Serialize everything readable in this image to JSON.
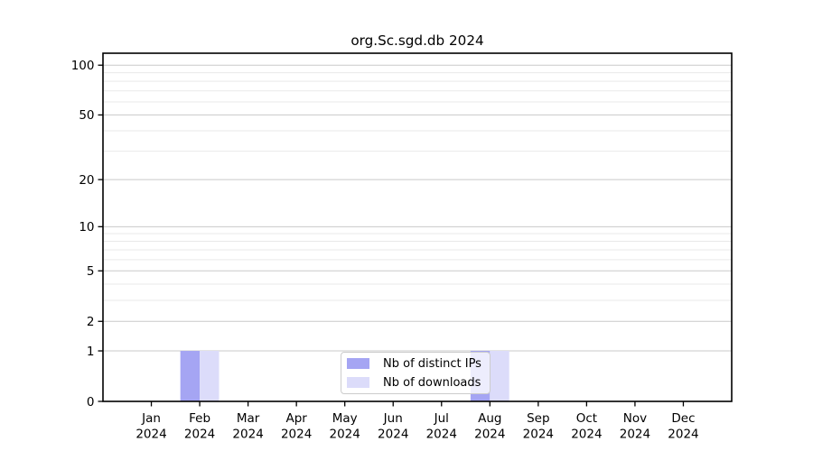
{
  "figure": {
    "background": "#ffffff"
  },
  "chart_data": {
    "type": "bar",
    "title": "org.Sc.sgd.db 2024",
    "categories": [
      "Jan",
      "Feb",
      "Mar",
      "Apr",
      "May",
      "Jun",
      "Jul",
      "Aug",
      "Sep",
      "Oct",
      "Nov",
      "Dec"
    ],
    "x_tick_sublabel": "2024",
    "series": [
      {
        "name": "Nb of distinct IPs",
        "color": "#a5a5f3",
        "values": [
          0,
          1,
          0,
          0,
          0,
          0,
          0,
          1,
          0,
          0,
          0,
          0
        ]
      },
      {
        "name": "Nb of downloads",
        "color": "#dcdcfa",
        "values": [
          0,
          1,
          0,
          0,
          0,
          0,
          0,
          1,
          0,
          0,
          0,
          0
        ]
      }
    ],
    "yscale": "log1p",
    "ylim": [
      0,
      118
    ],
    "y_major_ticks": [
      0,
      1,
      2,
      5,
      10,
      20,
      50,
      100
    ],
    "y_minor_ticks": [
      3,
      4,
      6,
      7,
      8,
      9,
      30,
      40,
      60,
      70,
      80,
      90
    ],
    "grid": "both",
    "legend_position": "lower center",
    "style": {
      "grid_major_color": "#c9c9c9",
      "grid_minor_color": "#e9e9e9",
      "axis_color": "#000000",
      "tick_label_color": "#000000"
    }
  }
}
